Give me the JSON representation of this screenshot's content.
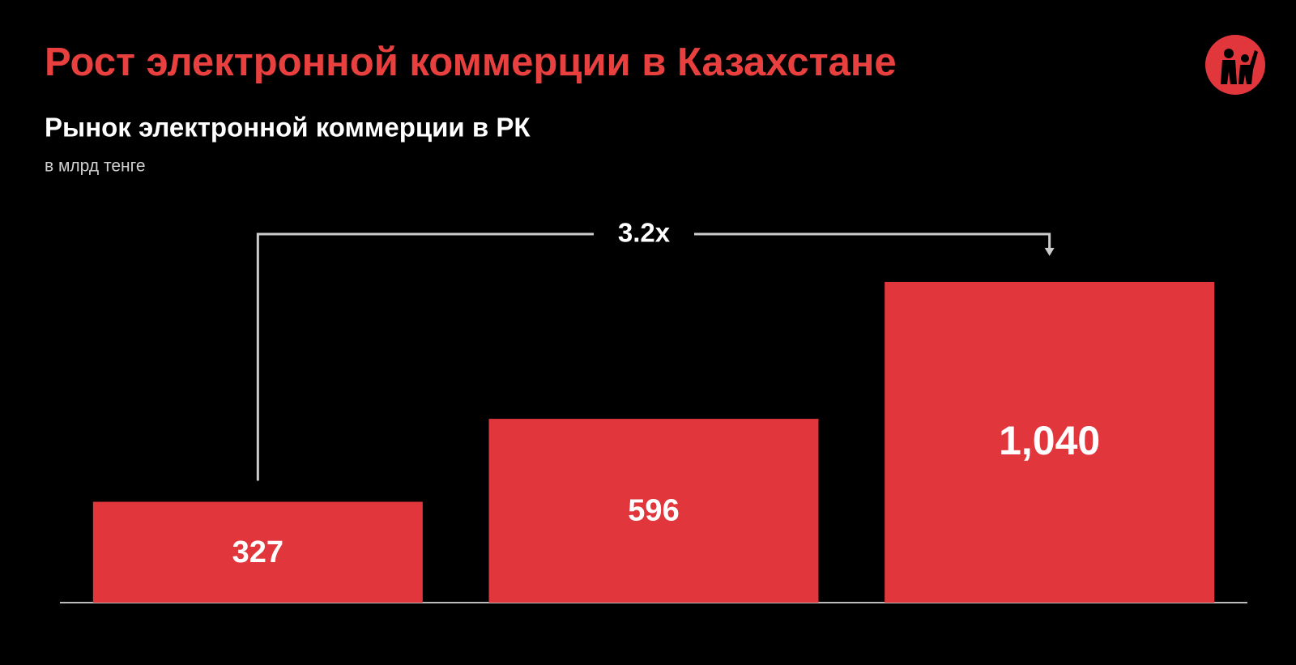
{
  "slide_title": "Рост электронной коммерции в Казахстане",
  "chart_data": {
    "type": "bar",
    "title": "Рынок электронной коммерции в РК",
    "subtitle": "в млрд тенге",
    "annotation": "3.2x",
    "categories": [
      null,
      null,
      null
    ],
    "values": [
      327,
      596,
      1040
    ],
    "value_labels": [
      "327",
      "596",
      "1,040"
    ],
    "color": "#e1363c"
  }
}
